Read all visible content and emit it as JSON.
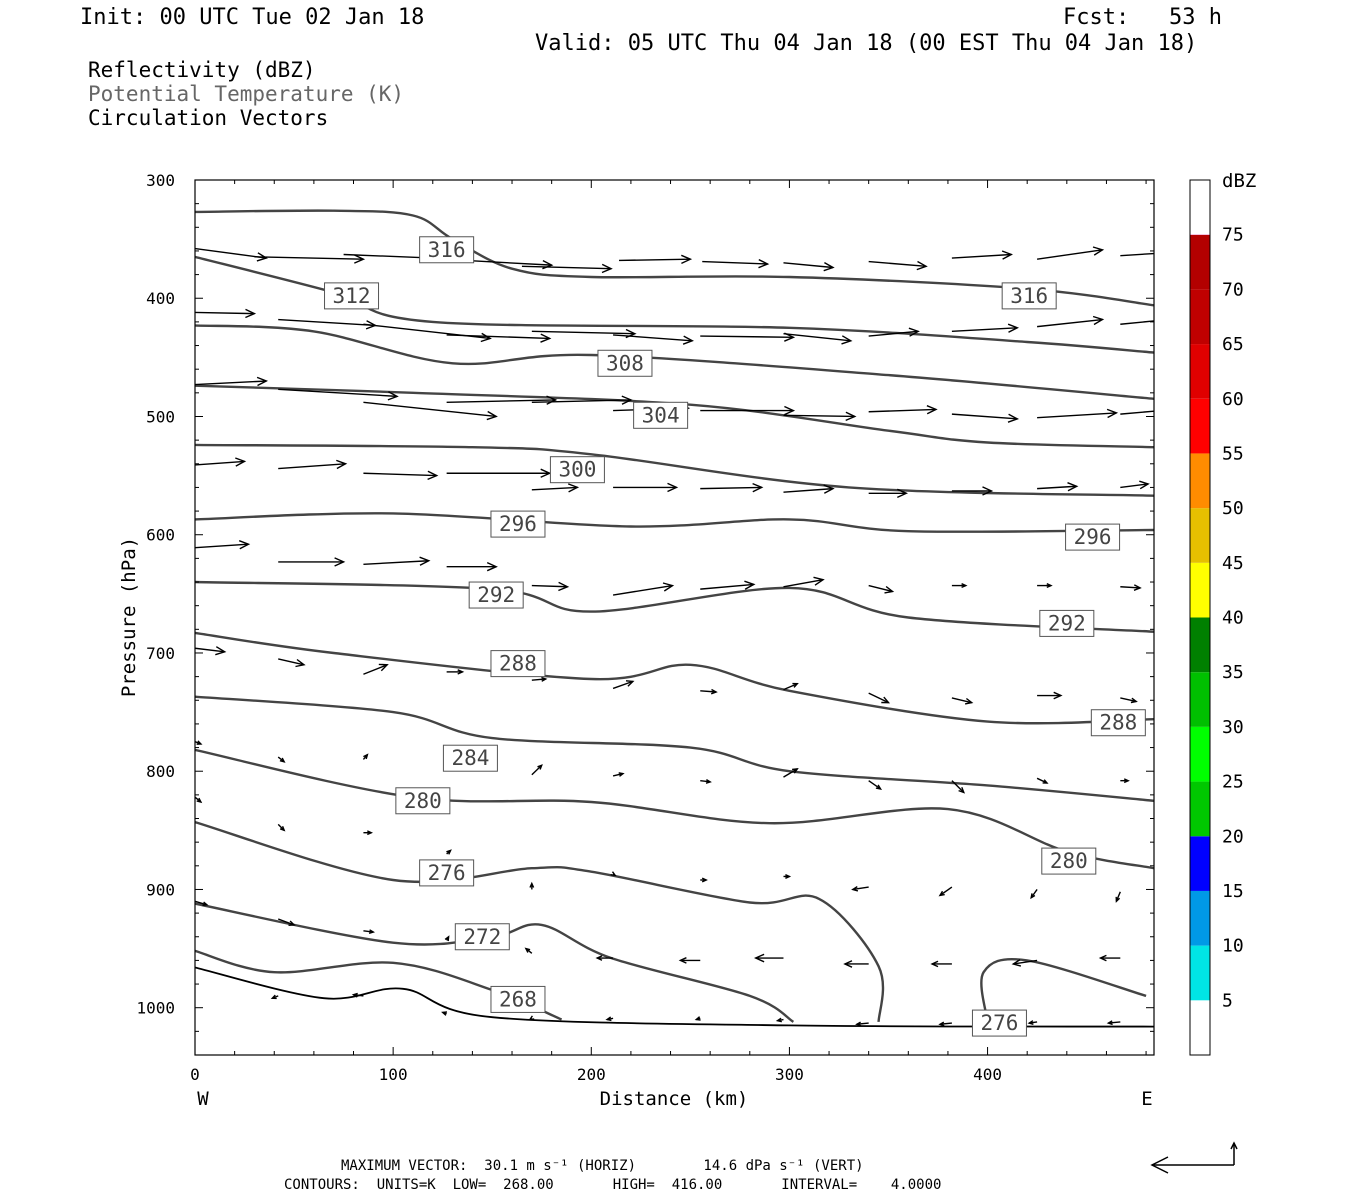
{
  "header": {
    "init": "Init: 00 UTC Tue 02 Jan 18",
    "fcst": "Fcst:   53 h",
    "valid": "Valid: 05 UTC Thu 04 Jan 18 (00 EST Thu 04 Jan 18)"
  },
  "fields": [
    {
      "label": "Reflectivity (dBZ)",
      "color": "#000000"
    },
    {
      "label": "Potential Temperature (K)",
      "color": "#666666"
    },
    {
      "label": "Circulation Vectors",
      "color": "#000000"
    }
  ],
  "footer": {
    "line1": "MAXIMUM VECTOR:  30.1 m s⁻¹ (HORIZ)        14.6 dPa s⁻¹ (VERT)",
    "line2": "CONTOURS:  UNITS=K  LOW=  268.00       HIGH=  416.00       INTERVAL=    4.0000"
  },
  "colorbar": {
    "unit": "dBZ",
    "levels": [
      5,
      10,
      15,
      20,
      25,
      30,
      35,
      40,
      45,
      50,
      55,
      60,
      65,
      70,
      75
    ],
    "colors": [
      "#00e5e5",
      "#0099e6",
      "#0000ff",
      "#00c800",
      "#00ff00",
      "#00c000",
      "#008000",
      "#ffff00",
      "#e6c000",
      "#ff8c00",
      "#ff0000",
      "#e00000",
      "#c00000",
      "#b30000",
      "#ff00ff",
      "#9966cc"
    ]
  },
  "chart_data": {
    "type": "cross-section",
    "title": "",
    "xlabel": "Distance (km)",
    "ylabel": "Pressure (hPa)",
    "xlim": [
      0,
      484
    ],
    "ylim": [
      1040,
      300
    ],
    "y_reversed": true,
    "xticks": [
      0,
      100,
      200,
      300,
      400
    ],
    "yticks": [
      300,
      400,
      500,
      600,
      700,
      800,
      900,
      1000
    ],
    "x_end_labels": {
      "left": "W",
      "right": "E"
    },
    "contour_color": "#444444",
    "contours": [
      {
        "label": "316",
        "points": [
          [
            0,
            327
          ],
          [
            70,
            326
          ],
          [
            110,
            330
          ],
          [
            130,
            350
          ],
          [
            160,
            375
          ],
          [
            200,
            382
          ],
          [
            300,
            382
          ],
          [
            420,
            392
          ],
          [
            484,
            406
          ]
        ],
        "label_at": [
          [
            127,
            359
          ],
          [
            421,
            398
          ]
        ]
      },
      {
        "label": "312",
        "points": [
          [
            0,
            365
          ],
          [
            70,
            395
          ],
          [
            120,
            420
          ],
          [
            300,
            425
          ],
          [
            420,
            437
          ],
          [
            484,
            446
          ]
        ],
        "label_at": [
          [
            79,
            398
          ]
        ]
      },
      {
        "label": "308",
        "points": [
          [
            0,
            423
          ],
          [
            60,
            428
          ],
          [
            130,
            455
          ],
          [
            200,
            448
          ],
          [
            350,
            465
          ],
          [
            484,
            485
          ]
        ],
        "label_at": [
          [
            217,
            455
          ]
        ]
      },
      {
        "label": "304",
        "points": [
          [
            0,
            474
          ],
          [
            110,
            480
          ],
          [
            250,
            490
          ],
          [
            350,
            512
          ],
          [
            400,
            522
          ],
          [
            484,
            526
          ]
        ],
        "label_at": [
          [
            235,
            499
          ]
        ]
      },
      {
        "label": "300",
        "points": [
          [
            0,
            524
          ],
          [
            140,
            526
          ],
          [
            200,
            532
          ],
          [
            330,
            560
          ],
          [
            484,
            567
          ]
        ],
        "label_at": [
          [
            193,
            545
          ]
        ]
      },
      {
        "label": "296",
        "points": [
          [
            0,
            587
          ],
          [
            100,
            582
          ],
          [
            220,
            593
          ],
          [
            300,
            587
          ],
          [
            360,
            597
          ],
          [
            484,
            596
          ]
        ],
        "label_at": [
          [
            163,
            591
          ],
          [
            453,
            602
          ]
        ]
      },
      {
        "label": "292",
        "points": [
          [
            0,
            640
          ],
          [
            150,
            646
          ],
          [
            200,
            665
          ],
          [
            300,
            645
          ],
          [
            360,
            670
          ],
          [
            484,
            682
          ]
        ],
        "label_at": [
          [
            152,
            651
          ],
          [
            440,
            675
          ]
        ]
      },
      {
        "label": "288",
        "points": [
          [
            0,
            683
          ],
          [
            70,
            700
          ],
          [
            200,
            722
          ],
          [
            250,
            710
          ],
          [
            300,
            732
          ],
          [
            400,
            758
          ],
          [
            484,
            756
          ]
        ],
        "label_at": [
          [
            163,
            709
          ],
          [
            466,
            759
          ]
        ]
      },
      {
        "label": "284",
        "points": [
          [
            0,
            737
          ],
          [
            100,
            750
          ],
          [
            150,
            772
          ],
          [
            250,
            780
          ],
          [
            300,
            800
          ],
          [
            400,
            812
          ],
          [
            484,
            825
          ]
        ],
        "label_at": [
          [
            139,
            789
          ]
        ]
      },
      {
        "label": "280",
        "points": [
          [
            0,
            782
          ],
          [
            110,
            822
          ],
          [
            200,
            826
          ],
          [
            290,
            844
          ],
          [
            380,
            832
          ],
          [
            440,
            868
          ],
          [
            484,
            882
          ]
        ],
        "label_at": [
          [
            115,
            825
          ],
          [
            441,
            876
          ]
        ]
      },
      {
        "label": "276",
        "points": [
          [
            0,
            843
          ],
          [
            100,
            892
          ],
          [
            170,
            882
          ],
          [
            200,
            885
          ],
          [
            280,
            911
          ],
          [
            315,
            908
          ],
          [
            345,
            965
          ],
          [
            345,
            1012
          ]
        ],
        "label_at": [
          [
            127,
            886
          ]
        ]
      },
      {
        "label": "272",
        "points": [
          [
            0,
            912
          ],
          [
            100,
            945
          ],
          [
            150,
            940
          ],
          [
            175,
            930
          ],
          [
            210,
            958
          ],
          [
            280,
            990
          ],
          [
            302,
            1012
          ]
        ],
        "label_at": [
          [
            145,
            940
          ]
        ]
      },
      {
        "label": "268",
        "points": [
          [
            0,
            952
          ],
          [
            40,
            970
          ],
          [
            100,
            962
          ],
          [
            150,
            985
          ],
          [
            185,
            1010
          ]
        ],
        "label_at": [
          [
            163,
            993
          ]
        ]
      },
      {
        "label": "276",
        "points": [
          [
            400,
            1012
          ],
          [
            398,
            970
          ],
          [
            420,
            960
          ],
          [
            480,
            990
          ]
        ],
        "label_at": [
          [
            406,
            1013
          ]
        ]
      }
    ],
    "surface": {
      "points": [
        [
          0,
          966
        ],
        [
          65,
          992
        ],
        [
          105,
          984
        ],
        [
          150,
          1008
        ],
        [
          300,
          1015
        ],
        [
          484,
          1016
        ]
      ]
    },
    "vectors": [
      [
        0,
        358,
        36,
        8
      ],
      [
        30,
        365,
        55,
        2
      ],
      [
        75,
        363,
        45,
        3
      ],
      [
        125,
        367,
        55,
        5
      ],
      [
        165,
        373,
        45,
        2
      ],
      [
        214,
        368,
        36,
        -1
      ],
      [
        256,
        369,
        33,
        2
      ],
      [
        297,
        370,
        25,
        4
      ],
      [
        340,
        369,
        29,
        4
      ],
      [
        382,
        366,
        30,
        -3
      ],
      [
        425,
        367,
        33,
        -8
      ],
      [
        467,
        364,
        28,
        -3
      ],
      [
        0,
        412,
        30,
        1
      ],
      [
        42,
        418,
        49,
        5
      ],
      [
        85,
        422,
        64,
        12
      ],
      [
        127,
        431,
        52,
        3
      ],
      [
        170,
        428,
        52,
        2
      ],
      [
        211,
        431,
        40,
        5
      ],
      [
        255,
        432,
        47,
        1
      ],
      [
        297,
        430,
        34,
        6
      ],
      [
        340,
        432,
        25,
        -4
      ],
      [
        382,
        428,
        33,
        -3
      ],
      [
        425,
        424,
        33,
        -6
      ],
      [
        467,
        422,
        30,
        -5
      ],
      [
        0,
        473,
        36,
        -3
      ],
      [
        42,
        477,
        60,
        6
      ],
      [
        85,
        488,
        67,
        12
      ],
      [
        127,
        488,
        55,
        -2
      ],
      [
        170,
        488,
        50,
        -2
      ],
      [
        211,
        495,
        38,
        -2
      ],
      [
        255,
        495,
        47,
        0
      ],
      [
        297,
        499,
        36,
        1
      ],
      [
        340,
        496,
        34,
        -2
      ],
      [
        382,
        498,
        33,
        4
      ],
      [
        425,
        501,
        40,
        -4
      ],
      [
        467,
        498,
        27,
        -4
      ],
      [
        0,
        541,
        25,
        -3
      ],
      [
        42,
        544,
        34,
        -4
      ],
      [
        85,
        548,
        37,
        2
      ],
      [
        127,
        548,
        52,
        0
      ],
      [
        170,
        562,
        23,
        -2
      ],
      [
        211,
        560,
        32,
        0
      ],
      [
        255,
        561,
        31,
        -1
      ],
      [
        297,
        564,
        25,
        -3
      ],
      [
        340,
        565,
        19,
        0
      ],
      [
        382,
        563,
        20,
        0
      ],
      [
        425,
        561,
        20,
        -2
      ],
      [
        467,
        560,
        14,
        -3
      ],
      [
        0,
        611,
        27,
        -3
      ],
      [
        42,
        623,
        33,
        0
      ],
      [
        85,
        625,
        33,
        -3
      ],
      [
        127,
        627,
        25,
        0
      ],
      [
        170,
        643,
        18,
        1
      ],
      [
        211,
        651,
        30,
        -8
      ],
      [
        255,
        646,
        27,
        -4
      ],
      [
        297,
        644,
        20,
        -6
      ],
      [
        340,
        643,
        12,
        5
      ],
      [
        382,
        643,
        7,
        0
      ],
      [
        425,
        643,
        7,
        0
      ],
      [
        467,
        644,
        10,
        1
      ],
      [
        0,
        696,
        15,
        3
      ],
      [
        42,
        705,
        13,
        5
      ],
      [
        85,
        718,
        12,
        -8
      ],
      [
        127,
        716,
        8,
        0
      ],
      [
        170,
        723,
        7,
        -1
      ],
      [
        211,
        730,
        10,
        -6
      ],
      [
        255,
        732,
        8,
        1
      ],
      [
        297,
        731,
        7,
        -5
      ],
      [
        340,
        734,
        10,
        8
      ],
      [
        382,
        738,
        10,
        4
      ],
      [
        425,
        736,
        12,
        0
      ],
      [
        467,
        738,
        8,
        3
      ],
      [
        0,
        775,
        3,
        2
      ],
      [
        42,
        788,
        3,
        4
      ],
      [
        85,
        790,
        2,
        -4
      ],
      [
        127,
        793,
        1,
        -5
      ],
      [
        170,
        803,
        5,
        -8
      ],
      [
        211,
        804,
        5,
        -2
      ],
      [
        255,
        808,
        5,
        1
      ],
      [
        297,
        805,
        7,
        -7
      ],
      [
        340,
        808,
        6,
        7
      ],
      [
        382,
        808,
        6,
        10
      ],
      [
        425,
        806,
        5,
        4
      ],
      [
        467,
        808,
        4,
        0
      ],
      [
        0,
        822,
        3,
        4
      ],
      [
        42,
        845,
        3,
        5
      ],
      [
        85,
        852,
        4,
        0
      ],
      [
        127,
        870,
        2,
        -3
      ],
      [
        170,
        900,
        0,
        -5
      ],
      [
        211,
        887,
        1,
        1
      ],
      [
        255,
        892,
        3,
        0
      ],
      [
        297,
        889,
        3,
        0
      ],
      [
        340,
        898,
        -8,
        2
      ],
      [
        382,
        898,
        -6,
        7
      ],
      [
        425,
        900,
        -3,
        7
      ],
      [
        467,
        902,
        -2,
        8
      ],
      [
        0,
        910,
        6,
        3
      ],
      [
        42,
        925,
        8,
        5
      ],
      [
        85,
        935,
        5,
        1
      ],
      [
        127,
        943,
        1,
        -3
      ],
      [
        170,
        954,
        -3,
        -4
      ],
      [
        211,
        958,
        -8,
        0
      ],
      [
        255,
        960,
        -10,
        0
      ],
      [
        297,
        958,
        -14,
        0
      ],
      [
        340,
        963,
        -12,
        0
      ],
      [
        382,
        963,
        -10,
        0
      ],
      [
        425,
        960,
        -12,
        3
      ],
      [
        467,
        958,
        -10,
        0
      ],
      [
        0,
        969,
        -2,
        0
      ],
      [
        42,
        990,
        -3,
        2
      ],
      [
        85,
        990,
        -5,
        -1
      ],
      [
        127,
        1005,
        -2,
        -1
      ],
      [
        170,
        1009,
        -1,
        1
      ],
      [
        211,
        1009,
        -3,
        1
      ],
      [
        255,
        1009,
        -2,
        1
      ],
      [
        297,
        1010,
        -3,
        1
      ],
      [
        340,
        1013,
        -6,
        1
      ],
      [
        382,
        1013,
        -6,
        1
      ],
      [
        425,
        1012,
        -4,
        1
      ],
      [
        467,
        1012,
        -6,
        1
      ]
    ],
    "reference_vector": {
      "horiz": "30.1 m s⁻¹",
      "vert": "14.6 dPa s⁻¹"
    }
  }
}
